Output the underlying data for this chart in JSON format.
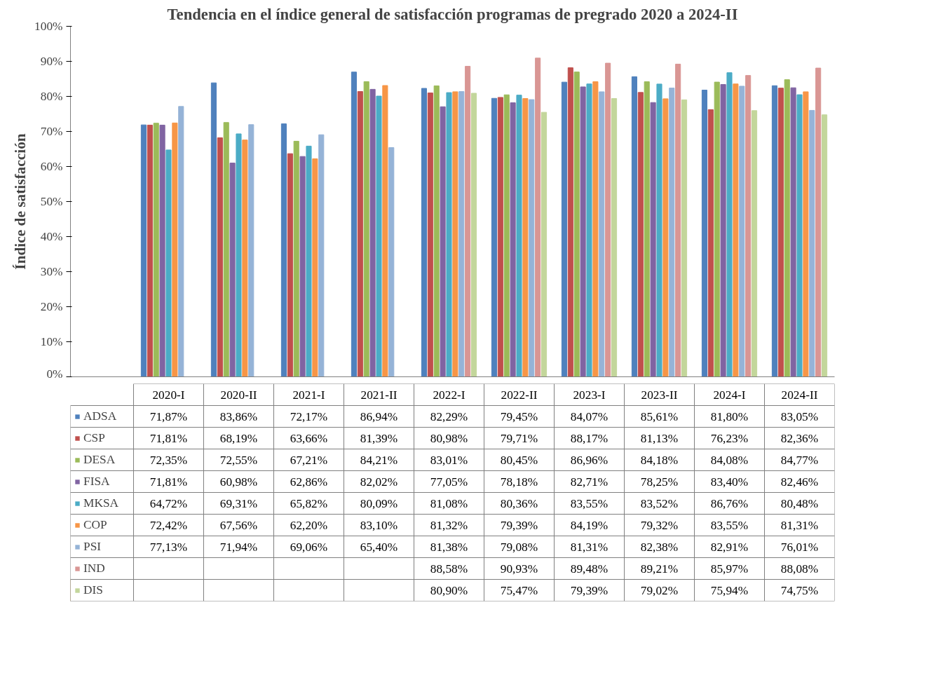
{
  "chart_data": {
    "type": "bar",
    "title": "Tendencia en el índice general de satisfacción programas de pregrado 2020 a 2024-II",
    "ylabel": "Índice de satisfacción",
    "categories": [
      "2020-I",
      "2020-II",
      "2021-I",
      "2021-II",
      "2022-I",
      "2022-II",
      "2023-I",
      "2023-II",
      "2024-I",
      "2024-II"
    ],
    "ylim": [
      0,
      100
    ],
    "legend": "bottom left",
    "yticks": [
      {
        "value": 0,
        "label": "0%"
      },
      {
        "value": 10,
        "label": "10%"
      },
      {
        "value": 20,
        "label": "20%"
      },
      {
        "value": 30,
        "label": "30%"
      },
      {
        "value": 40,
        "label": "40%"
      },
      {
        "value": 50,
        "label": "50%"
      },
      {
        "value": 60,
        "label": "60%"
      },
      {
        "value": 70,
        "label": "70%"
      },
      {
        "value": 80,
        "label": "80%"
      },
      {
        "value": 90,
        "label": "90%"
      },
      {
        "value": 100,
        "label": "100%"
      }
    ],
    "series": [
      {
        "name": "ADSA",
        "color": "#4f81bd",
        "values": [
          71.87,
          83.86,
          72.17,
          86.94,
          82.29,
          79.45,
          84.07,
          85.61,
          81.8,
          83.05
        ],
        "value_labels": [
          "71,87%",
          "83,86%",
          "72,17%",
          "86,94%",
          "82,29%",
          "79,45%",
          "84,07%",
          "85,61%",
          "81,80%",
          "83,05%"
        ]
      },
      {
        "name": "CSP",
        "color": "#c0504d",
        "values": [
          71.81,
          68.19,
          63.66,
          81.39,
          80.98,
          79.71,
          88.17,
          81.13,
          76.23,
          82.36
        ],
        "value_labels": [
          "71,81%",
          "68,19%",
          "63,66%",
          "81,39%",
          "80,98%",
          "79,71%",
          "88,17%",
          "81,13%",
          "76,23%",
          "82,36%"
        ]
      },
      {
        "name": "DESA",
        "color": "#9bbb59",
        "values": [
          72.35,
          72.55,
          67.21,
          84.21,
          83.01,
          80.45,
          86.96,
          84.18,
          84.08,
          84.77
        ],
        "value_labels": [
          "72,35%",
          "72,55%",
          "67,21%",
          "84,21%",
          "83,01%",
          "80,45%",
          "86,96%",
          "84,18%",
          "84,08%",
          "84,77%"
        ]
      },
      {
        "name": "FISA",
        "color": "#8064a2",
        "values": [
          71.81,
          60.98,
          62.86,
          82.02,
          77.05,
          78.18,
          82.71,
          78.25,
          83.4,
          82.46
        ],
        "value_labels": [
          "71,81%",
          "60,98%",
          "62,86%",
          "82,02%",
          "77,05%",
          "78,18%",
          "82,71%",
          "78,25%",
          "83,40%",
          "82,46%"
        ]
      },
      {
        "name": "MKSA",
        "color": "#4bacc6",
        "values": [
          64.72,
          69.31,
          65.82,
          80.09,
          81.08,
          80.36,
          83.55,
          83.52,
          86.76,
          80.48
        ],
        "value_labels": [
          "64,72%",
          "69,31%",
          "65,82%",
          "80,09%",
          "81,08%",
          "80,36%",
          "83,55%",
          "83,52%",
          "86,76%",
          "80,48%"
        ]
      },
      {
        "name": "COP",
        "color": "#f79646",
        "values": [
          72.42,
          67.56,
          62.2,
          83.1,
          81.32,
          79.39,
          84.19,
          79.32,
          83.55,
          81.31
        ],
        "value_labels": [
          "72,42%",
          "67,56%",
          "62,20%",
          "83,10%",
          "81,32%",
          "79,39%",
          "84,19%",
          "79,32%",
          "83,55%",
          "81,31%"
        ]
      },
      {
        "name": "PSI",
        "color": "#95b3d7",
        "values": [
          77.13,
          71.94,
          69.06,
          65.4,
          81.38,
          79.08,
          81.31,
          82.38,
          82.91,
          76.01
        ],
        "value_labels": [
          "77,13%",
          "71,94%",
          "69,06%",
          "65,40%",
          "81,38%",
          "79,08%",
          "81,31%",
          "82,38%",
          "82,91%",
          "76,01%"
        ]
      },
      {
        "name": "IND",
        "color": "#d99694",
        "values": [
          null,
          null,
          null,
          null,
          88.58,
          90.93,
          89.48,
          89.21,
          85.97,
          88.08
        ],
        "value_labels": [
          null,
          null,
          null,
          null,
          "88,58%",
          "90,93%",
          "89,48%",
          "89,21%",
          "85,97%",
          "88,08%"
        ]
      },
      {
        "name": "DIS",
        "color": "#c3d69b",
        "values": [
          null,
          null,
          null,
          null,
          80.9,
          75.47,
          79.39,
          79.02,
          75.94,
          74.75
        ],
        "value_labels": [
          null,
          null,
          null,
          null,
          "80,90%",
          "75,47%",
          "79,39%",
          "79,02%",
          "75,94%",
          "74,75%"
        ]
      }
    ]
  }
}
